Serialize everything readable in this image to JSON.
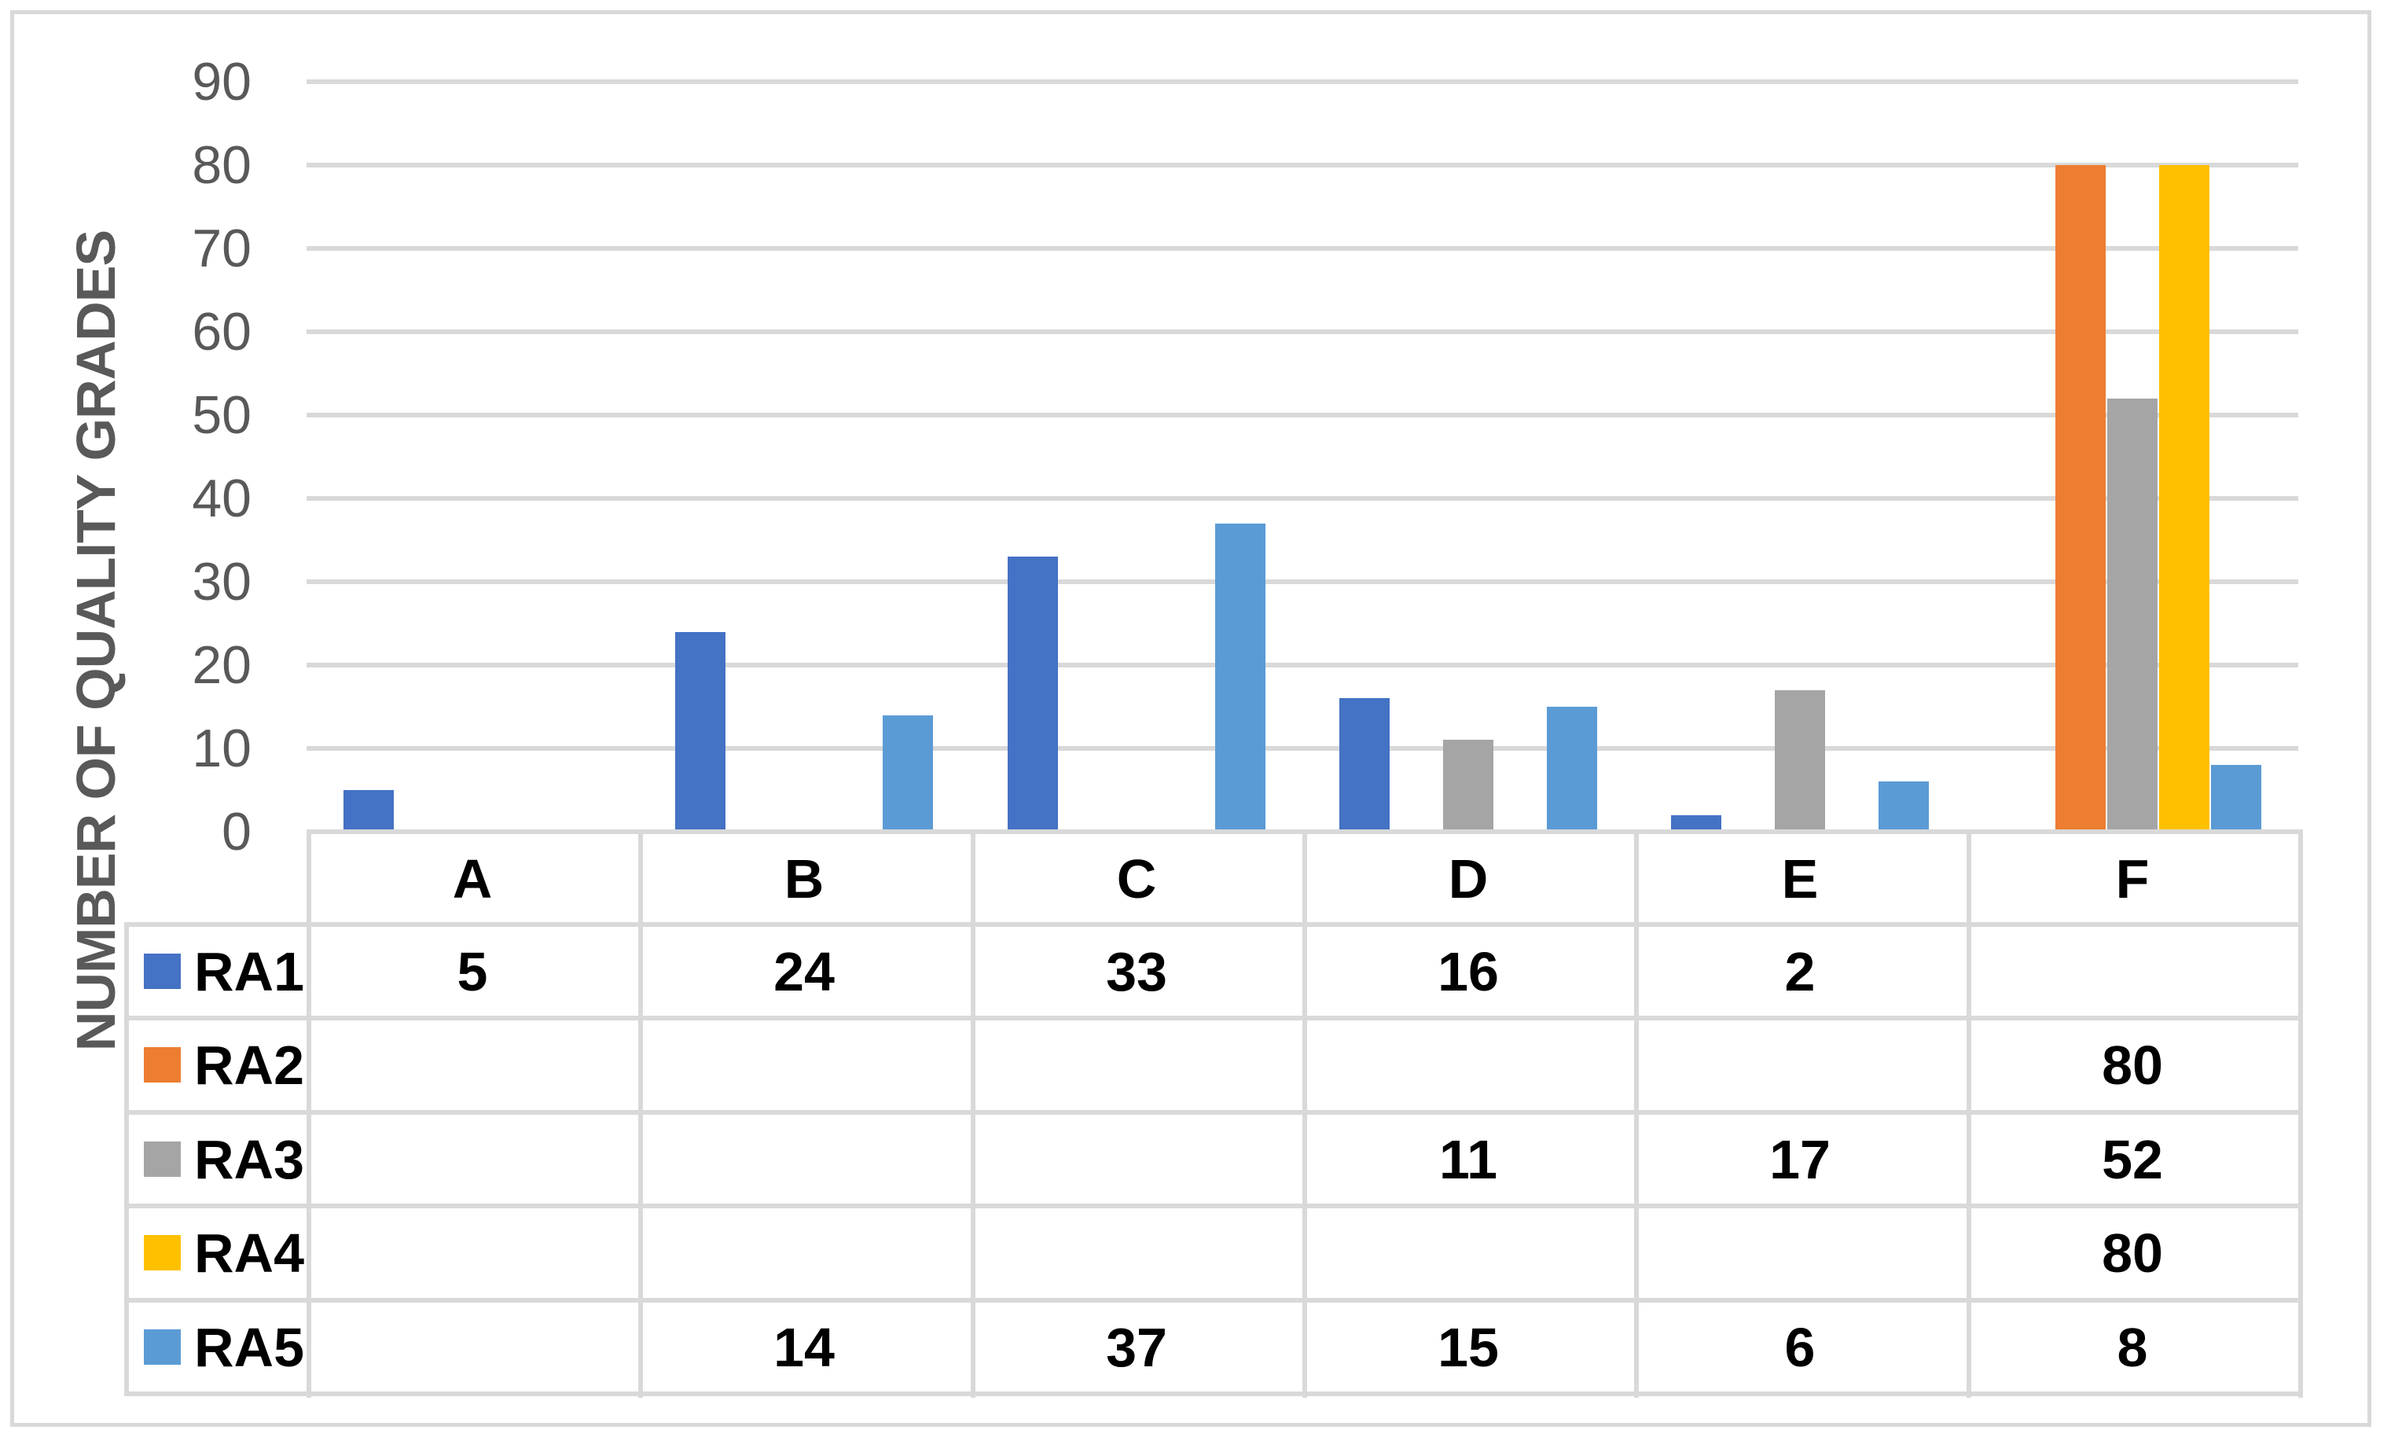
{
  "chart_data": {
    "type": "bar",
    "title": "",
    "ylabel": "NUMBER OF QUALITY GRADES",
    "xlabel": "",
    "categories": [
      "A",
      "B",
      "C",
      "D",
      "E",
      "F"
    ],
    "series": [
      {
        "name": "RA1",
        "color": "#4472C4",
        "values": [
          5,
          24,
          33,
          16,
          2,
          null
        ]
      },
      {
        "name": "RA2",
        "color": "#ED7D31",
        "values": [
          null,
          null,
          null,
          null,
          null,
          80
        ]
      },
      {
        "name": "RA3",
        "color": "#A5A5A5",
        "values": [
          null,
          null,
          null,
          11,
          17,
          52
        ]
      },
      {
        "name": "RA4",
        "color": "#FFC000",
        "values": [
          null,
          null,
          null,
          null,
          null,
          80
        ]
      },
      {
        "name": "RA5",
        "color": "#5B9BD5",
        "values": [
          null,
          14,
          37,
          15,
          6,
          8
        ]
      }
    ],
    "ylim": [
      0,
      90
    ],
    "yticks": [
      0,
      10,
      20,
      30,
      40,
      50,
      60,
      70,
      80,
      90
    ],
    "grid": true,
    "legend_position": "data-table-left",
    "data_table_shown": true
  },
  "colors": {
    "background": "#FFFFFF",
    "outer_border": "#D9D9D9",
    "gridline": "#D9D9D9",
    "table_border": "#D9D9D9",
    "axis_text": "#595959",
    "table_text": "#000000"
  }
}
